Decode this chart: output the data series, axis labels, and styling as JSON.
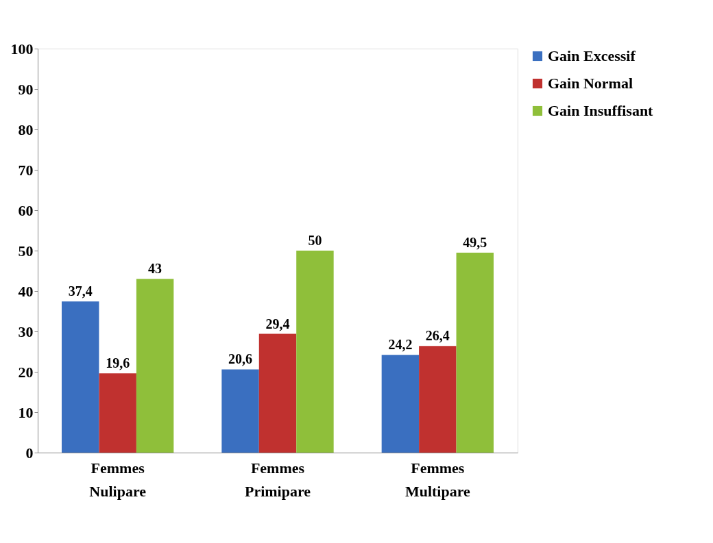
{
  "chart_data": {
    "type": "bar",
    "categories": [
      "Femmes Nulipare",
      "Femmes Primipare",
      "Femmes Multipare"
    ],
    "series": [
      {
        "name": "Gain Excessif",
        "color": "#3a6fc0",
        "values": [
          37.4,
          20.6,
          24.2
        ],
        "value_labels": [
          "37,4",
          "20,6",
          "24,2"
        ]
      },
      {
        "name": "Gain Normal",
        "color": "#c0312f",
        "values": [
          19.6,
          29.4,
          26.4
        ],
        "value_labels": [
          "19,6",
          "29,4",
          "26,4"
        ]
      },
      {
        "name": "Gain Insuffisant",
        "color": "#8fbf3a",
        "values": [
          43,
          50,
          49.5
        ],
        "value_labels": [
          "43",
          "50",
          "49,5"
        ]
      }
    ],
    "ylim": [
      0,
      100
    ],
    "yticks": [
      0,
      10,
      20,
      30,
      40,
      50,
      60,
      70,
      80,
      90,
      100
    ],
    "grid": false,
    "legend": "right"
  }
}
